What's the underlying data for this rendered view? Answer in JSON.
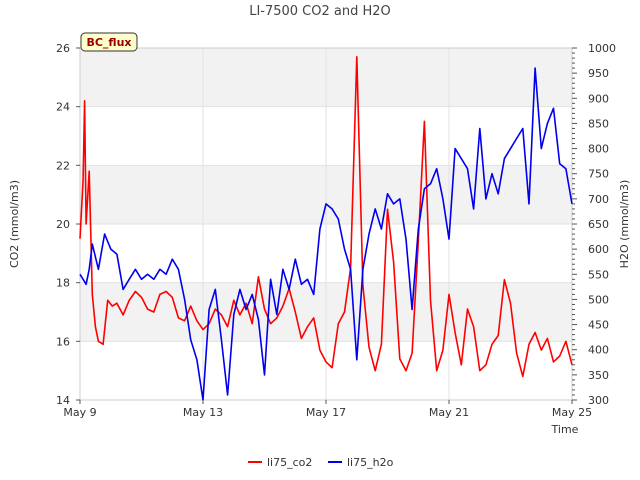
{
  "chart_data": {
    "type": "line",
    "title": "LI-7500 CO2 and H2O",
    "badge": "BC_flux",
    "xlabel": "Time",
    "ylabel": "CO2 (mmol/m3)",
    "y2label": "H2O (mmol/m3)",
    "xlim": [
      9,
      25
    ],
    "ylim": [
      14,
      26
    ],
    "y2lim": [
      300,
      1000
    ],
    "x_ticks": [
      {
        "value": 9,
        "label": "May 9"
      },
      {
        "value": 13,
        "label": "May 13"
      },
      {
        "value": 17,
        "label": "May 17"
      },
      {
        "value": 21,
        "label": "May 21"
      },
      {
        "value": 25,
        "label": "May 25"
      }
    ],
    "y_ticks": [
      14,
      16,
      18,
      20,
      22,
      24,
      26
    ],
    "y2_ticks": [
      300,
      350,
      400,
      450,
      500,
      550,
      600,
      650,
      700,
      750,
      800,
      850,
      900,
      950,
      1000
    ],
    "bands": [
      [
        16,
        18
      ],
      [
        20,
        22
      ],
      [
        24,
        26
      ]
    ],
    "series": [
      {
        "name": "li75_co2",
        "color": "#ff0000",
        "axis": "left",
        "x": [
          9.0,
          9.1,
          9.15,
          9.2,
          9.3,
          9.4,
          9.5,
          9.6,
          9.75,
          9.9,
          10.05,
          10.2,
          10.4,
          10.6,
          10.8,
          11.0,
          11.2,
          11.4,
          11.6,
          11.8,
          12.0,
          12.2,
          12.4,
          12.6,
          12.8,
          13.0,
          13.2,
          13.4,
          13.6,
          13.8,
          14.0,
          14.2,
          14.4,
          14.6,
          14.8,
          15.0,
          15.2,
          15.4,
          15.6,
          15.8,
          16.0,
          16.2,
          16.4,
          16.6,
          16.8,
          17.0,
          17.2,
          17.4,
          17.6,
          17.8,
          18.0,
          18.2,
          18.4,
          18.6,
          18.8,
          19.0,
          19.2,
          19.4,
          19.6,
          19.8,
          20.0,
          20.2,
          20.4,
          20.6,
          20.8,
          21.0,
          21.2,
          21.4,
          21.6,
          21.8,
          22.0,
          22.2,
          22.4,
          22.6,
          22.8,
          23.0,
          23.2,
          23.4,
          23.6,
          23.8,
          24.0,
          24.2,
          24.4,
          24.6,
          24.8,
          25.0
        ],
        "values": [
          19.5,
          21.5,
          24.2,
          20.0,
          21.8,
          17.6,
          16.5,
          16.0,
          15.9,
          17.4,
          17.2,
          17.3,
          16.9,
          17.4,
          17.7,
          17.5,
          17.1,
          17.0,
          17.6,
          17.7,
          17.5,
          16.8,
          16.7,
          17.2,
          16.7,
          16.4,
          16.6,
          17.1,
          16.9,
          16.5,
          17.4,
          16.9,
          17.3,
          16.6,
          18.2,
          17.1,
          16.6,
          16.8,
          17.2,
          17.8,
          17.0,
          16.1,
          16.5,
          16.8,
          15.7,
          15.3,
          15.1,
          16.6,
          17.0,
          18.5,
          25.7,
          17.9,
          15.8,
          15.0,
          15.9,
          20.5,
          18.7,
          15.4,
          15.0,
          15.6,
          19.4,
          23.5,
          17.4,
          15.0,
          15.7,
          17.6,
          16.3,
          15.2,
          17.1,
          16.5,
          15.0,
          15.2,
          15.9,
          16.2,
          18.1,
          17.3,
          15.6,
          14.8,
          15.9,
          16.3,
          15.7,
          16.1,
          15.3,
          15.5,
          16.0,
          15.2
        ]
      },
      {
        "name": "li75_h2o",
        "color": "#0000ee",
        "axis": "right",
        "x": [
          9.0,
          9.1,
          9.2,
          9.3,
          9.4,
          9.6,
          9.8,
          10.0,
          10.2,
          10.4,
          10.6,
          10.8,
          11.0,
          11.2,
          11.4,
          11.6,
          11.8,
          12.0,
          12.2,
          12.4,
          12.6,
          12.8,
          13.0,
          13.2,
          13.4,
          13.6,
          13.8,
          14.0,
          14.2,
          14.4,
          14.6,
          14.8,
          15.0,
          15.2,
          15.4,
          15.6,
          15.8,
          16.0,
          16.2,
          16.4,
          16.6,
          16.8,
          17.0,
          17.2,
          17.4,
          17.6,
          17.8,
          18.0,
          18.2,
          18.4,
          18.6,
          18.8,
          19.0,
          19.2,
          19.4,
          19.6,
          19.8,
          20.0,
          20.2,
          20.4,
          20.6,
          20.8,
          21.0,
          21.2,
          21.4,
          21.6,
          21.8,
          22.0,
          22.2,
          22.4,
          22.6,
          22.8,
          23.0,
          23.2,
          23.4,
          23.6,
          23.8,
          24.0,
          24.2,
          24.4,
          24.6,
          24.8,
          25.0
        ],
        "values": [
          550,
          540,
          530,
          560,
          610,
          560,
          630,
          600,
          590,
          520,
          540,
          560,
          540,
          550,
          540,
          560,
          550,
          580,
          560,
          500,
          420,
          380,
          300,
          480,
          520,
          420,
          310,
          470,
          520,
          480,
          510,
          460,
          350,
          540,
          470,
          560,
          520,
          580,
          530,
          540,
          510,
          640,
          690,
          680,
          660,
          600,
          560,
          380,
          560,
          630,
          680,
          640,
          710,
          690,
          700,
          620,
          480,
          640,
          720,
          730,
          760,
          700,
          620,
          800,
          780,
          760,
          680,
          840,
          700,
          750,
          710,
          780,
          800,
          820,
          840,
          690,
          960,
          800,
          850,
          880,
          770,
          760,
          690
        ]
      }
    ],
    "legend": [
      "li75_co2",
      "li75_h2o"
    ]
  }
}
